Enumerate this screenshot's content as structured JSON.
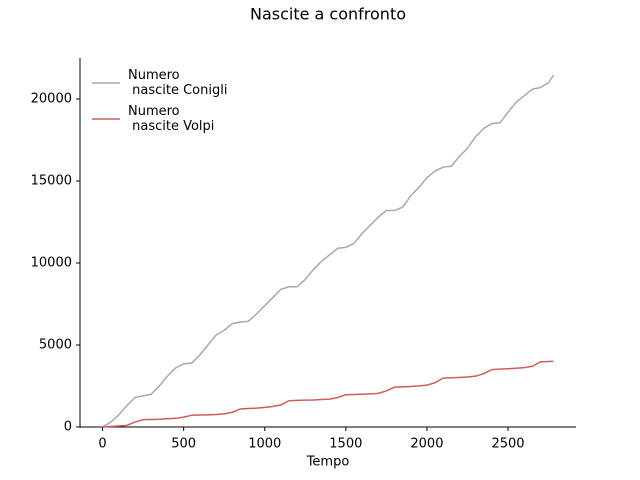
{
  "chart_data": {
    "type": "line",
    "title": "Nascite a confronto",
    "x_label": "Tempo",
    "x": [
      0,
      50,
      100,
      150,
      200,
      250,
      300,
      350,
      400,
      450,
      500,
      550,
      600,
      650,
      700,
      750,
      800,
      850,
      900,
      950,
      1000,
      1050,
      1100,
      1150,
      1200,
      1250,
      1300,
      1350,
      1400,
      1450,
      1500,
      1550,
      1600,
      1650,
      1700,
      1750,
      1800,
      1850,
      1900,
      1950,
      2000,
      2050,
      2100,
      2150,
      2200,
      2250,
      2300,
      2350,
      2400,
      2450,
      2500,
      2550,
      2600,
      2650,
      2700,
      2750,
      2780
    ],
    "series": [
      {
        "name": "Numero\n nascite Conigli",
        "color": "#a9a9a9",
        "values": [
          0,
          300,
          730,
          1300,
          1800,
          1900,
          2000,
          2500,
          3100,
          3600,
          3850,
          3900,
          4400,
          5000,
          5600,
          5900,
          6300,
          6400,
          6450,
          6900,
          7400,
          7900,
          8400,
          8550,
          8550,
          9000,
          9600,
          10100,
          10500,
          10900,
          10950,
          11200,
          11800,
          12300,
          12800,
          13200,
          13200,
          13400,
          14100,
          14600,
          15200,
          15600,
          15850,
          15900,
          16500,
          17000,
          17700,
          18200,
          18500,
          18550,
          19200,
          19800,
          20200,
          20600,
          20700,
          21000,
          21450
        ]
      },
      {
        "name": "Numero\n nascite Volpi",
        "color": "#cd5c5c",
        "values": [
          0,
          30,
          60,
          100,
          300,
          450,
          460,
          470,
          500,
          530,
          600,
          720,
          730,
          740,
          760,
          800,
          900,
          1100,
          1130,
          1150,
          1200,
          1250,
          1350,
          1600,
          1620,
          1640,
          1650,
          1680,
          1700,
          1800,
          1970,
          1980,
          2000,
          2020,
          2050,
          2200,
          2430,
          2450,
          2470,
          2510,
          2550,
          2700,
          2980,
          3000,
          3020,
          3050,
          3100,
          3250,
          3500,
          3530,
          3550,
          3580,
          3620,
          3700,
          3970,
          3990,
          4000
        ]
      }
    ],
    "xlim": [
      -139,
      2919
    ],
    "ylim": [
      0,
      22500
    ],
    "xticks": [
      0,
      500,
      1000,
      1500,
      2000,
      2500
    ],
    "yticks": [
      0,
      5000,
      10000,
      15000,
      20000
    ],
    "legend": "upper left"
  }
}
